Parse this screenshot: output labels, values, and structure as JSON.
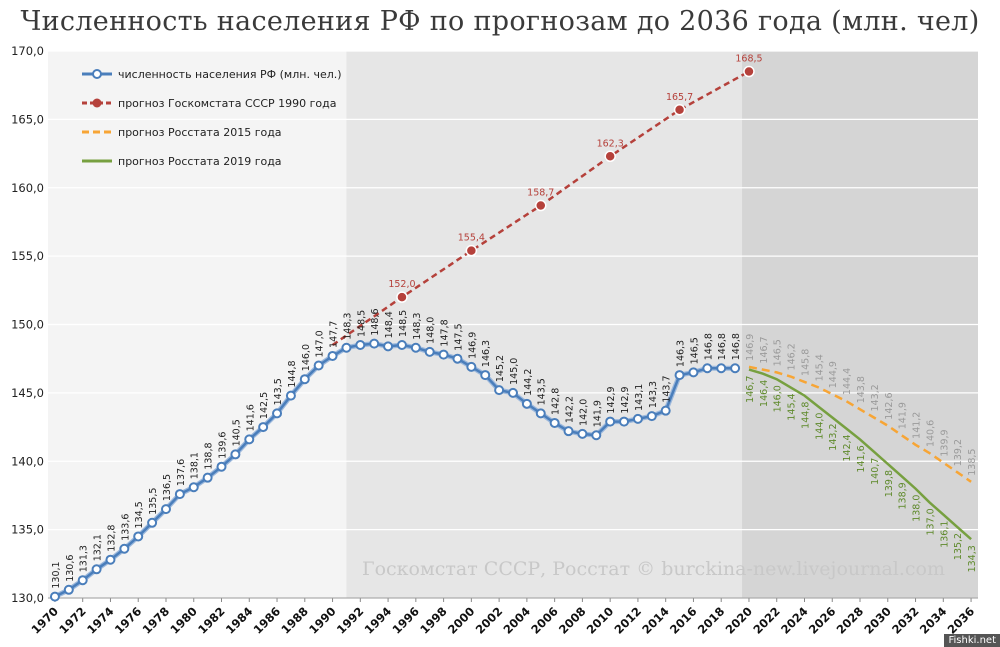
{
  "chart_data": {
    "type": "line",
    "title": "Численность населения РФ по прогнозам до 2036 года (млн. чел)",
    "xlabel": "",
    "ylabel": "",
    "xlim": [
      1970,
      2036
    ],
    "ylim": [
      130,
      170
    ],
    "y_ticks": [
      "130,0",
      "135,0",
      "140,0",
      "145,0",
      "150,0",
      "155,0",
      "160,0",
      "165,0",
      "170,0"
    ],
    "x_ticks": [
      "1970",
      "1972",
      "1974",
      "1976",
      "1978",
      "1980",
      "1982",
      "1984",
      "1986",
      "1988",
      "1990",
      "1992",
      "1994",
      "1996",
      "1998",
      "2000",
      "2002",
      "2004",
      "2006",
      "2008",
      "2010",
      "2012",
      "2014",
      "2016",
      "2018",
      "2020",
      "2022",
      "2024",
      "2026",
      "2028",
      "2030",
      "2032",
      "2034",
      "2036"
    ],
    "grid": true,
    "legend_position": "top-left",
    "shaded_periods": [
      {
        "from": 1991,
        "to": 2019.5,
        "color": "#e6e6e6"
      },
      {
        "from": 2019.5,
        "to": 2036.5,
        "color": "#d5d5d5"
      }
    ],
    "series": [
      {
        "name": "численность населения РФ (млн. чел.)",
        "color": "#4a7ebb",
        "style": "solid-markers",
        "x": [
          1970,
          1971,
          1972,
          1973,
          1974,
          1975,
          1976,
          1977,
          1978,
          1979,
          1980,
          1981,
          1982,
          1983,
          1984,
          1985,
          1986,
          1987,
          1988,
          1989,
          1990,
          1991,
          1992,
          1993,
          1994,
          1995,
          1996,
          1997,
          1998,
          1999,
          2000,
          2001,
          2002,
          2003,
          2004,
          2005,
          2006,
          2007,
          2008,
          2009,
          2010,
          2011,
          2012,
          2013,
          2014,
          2015,
          2016,
          2017,
          2018,
          2019
        ],
        "y": [
          130.1,
          130.6,
          131.3,
          132.1,
          132.8,
          133.6,
          134.5,
          135.5,
          136.5,
          137.6,
          138.1,
          138.8,
          139.6,
          140.5,
          141.6,
          142.5,
          143.5,
          144.8,
          146.0,
          147.0,
          147.7,
          148.3,
          148.5,
          148.6,
          148.4,
          148.5,
          148.3,
          148.0,
          147.8,
          147.5,
          146.9,
          146.3,
          145.2,
          145.0,
          144.2,
          143.5,
          142.8,
          142.2,
          142.0,
          141.9,
          142.9,
          142.9,
          143.1,
          143.3,
          143.7,
          146.3,
          146.5,
          146.8,
          146.8,
          146.8
        ],
        "labels": [
          "130,1",
          "130,6",
          "131,3",
          "132,1",
          "132,8",
          "133,6",
          "134,5",
          "135,5",
          "136,5",
          "137,6",
          "138,1",
          "138,8",
          "139,6",
          "140,5",
          "141,6",
          "142,5",
          "143,5",
          "144,8",
          "146,0",
          "147,0",
          "147,7",
          "148,3",
          "148,5",
          "148,6",
          "148,4",
          "148,5",
          "148,3",
          "148,0",
          "147,8",
          "147,5",
          "146,9",
          "146,3",
          "145,2",
          "145,0",
          "144,2",
          "143,5",
          "142,8",
          "142,2",
          "142,0",
          "141,9",
          "142,9",
          "142,9",
          "143,1",
          "143,3",
          "143,7",
          "146,3",
          "146,5",
          "146,8",
          "146,8",
          "146,8"
        ]
      },
      {
        "name": "прогноз Госкомстата СССР 1990 года",
        "color": "#b5413b",
        "style": "dotted-markers",
        "x": [
          1990,
          1995,
          2000,
          2005,
          2010,
          2015,
          2020
        ],
        "y": [
          148.5,
          152.0,
          155.4,
          158.7,
          162.3,
          165.7,
          168.5
        ],
        "labels": [
          "",
          "152,0",
          "155,4",
          "158,7",
          "162,3",
          "165,7",
          "168,5"
        ]
      },
      {
        "name": "прогноз Росстата 2015 года",
        "color": "#f7a535",
        "style": "dashed",
        "x": [
          2020,
          2021,
          2022,
          2023,
          2024,
          2025,
          2026,
          2027,
          2028,
          2029,
          2030,
          2031,
          2032,
          2033,
          2034,
          2035,
          2036
        ],
        "y": [
          146.9,
          146.7,
          146.5,
          146.2,
          145.8,
          145.4,
          144.9,
          144.4,
          143.8,
          143.2,
          142.6,
          141.9,
          141.2,
          140.6,
          139.9,
          139.2,
          138.5
        ],
        "labels": [
          "146,9",
          "146,7",
          "146,5",
          "146,2",
          "145,8",
          "145,4",
          "144,9",
          "144,4",
          "143,8",
          "143,2",
          "142,6",
          "141,9",
          "141,2",
          "140,6",
          "139,9",
          "139,2",
          "138,5"
        ]
      },
      {
        "name": "прогноз Росстата 2019 года",
        "color": "#77a040",
        "style": "solid",
        "x": [
          2020,
          2021,
          2022,
          2023,
          2024,
          2025,
          2026,
          2027,
          2028,
          2029,
          2030,
          2031,
          2032,
          2033,
          2034,
          2035,
          2036
        ],
        "y": [
          146.7,
          146.4,
          146.0,
          145.4,
          144.8,
          144.0,
          143.2,
          142.4,
          141.6,
          140.7,
          139.8,
          138.9,
          138.0,
          137.0,
          136.1,
          135.2,
          134.3
        ],
        "labels": [
          "146,7",
          "146,4",
          "146,0",
          "145,4",
          "144,8",
          "144,0",
          "143,2",
          "142,4",
          "141,6",
          "140,7",
          "139,8",
          "138,9",
          "138,0",
          "137,0",
          "136,1",
          "135,2",
          "134,3"
        ]
      }
    ]
  },
  "watermark": "Госкомстат СССР, Росстат © burckina-new.livejournal.com",
  "site_badge": "Fishki.net"
}
